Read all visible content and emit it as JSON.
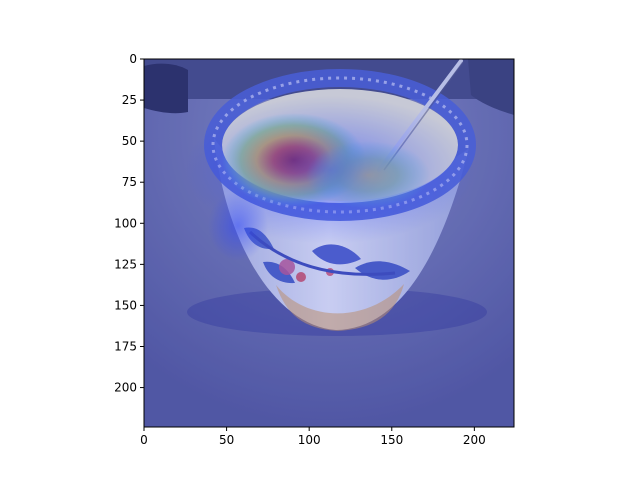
{
  "figure": {
    "type": "heatmap-overlay-image",
    "subject": "porcelain bowl with a spoon, with a saliency heatmap overlay",
    "colormap": "jet",
    "background_color": "#ffffff"
  },
  "axes": {
    "x_ticks": [
      "0",
      "50",
      "100",
      "150",
      "200"
    ],
    "y_ticks": [
      "0",
      "25",
      "50",
      "75",
      "100",
      "125",
      "150",
      "175",
      "200"
    ],
    "x_tick_values": [
      0,
      50,
      100,
      150,
      200
    ],
    "y_tick_values": [
      0,
      25,
      50,
      75,
      100,
      125,
      150,
      175,
      200
    ],
    "xlim": [
      0,
      224
    ],
    "ylim": [
      224,
      0
    ],
    "grid": false
  },
  "colors": {
    "table": "#6d74a8",
    "bowl_outer": "#d8dcec",
    "bowl_rim": "#4d5fd2",
    "bowl_inner": "#e6e2cf",
    "pattern": "#5868c7",
    "heat_red": "#cf2b12",
    "heat_orange": "#ee7b2b",
    "heat_yellow": "#f0da39",
    "heat_green": "#8ecf78",
    "heat_cyan": "#5bc8d9",
    "overlay_blue": "#2434c8"
  }
}
